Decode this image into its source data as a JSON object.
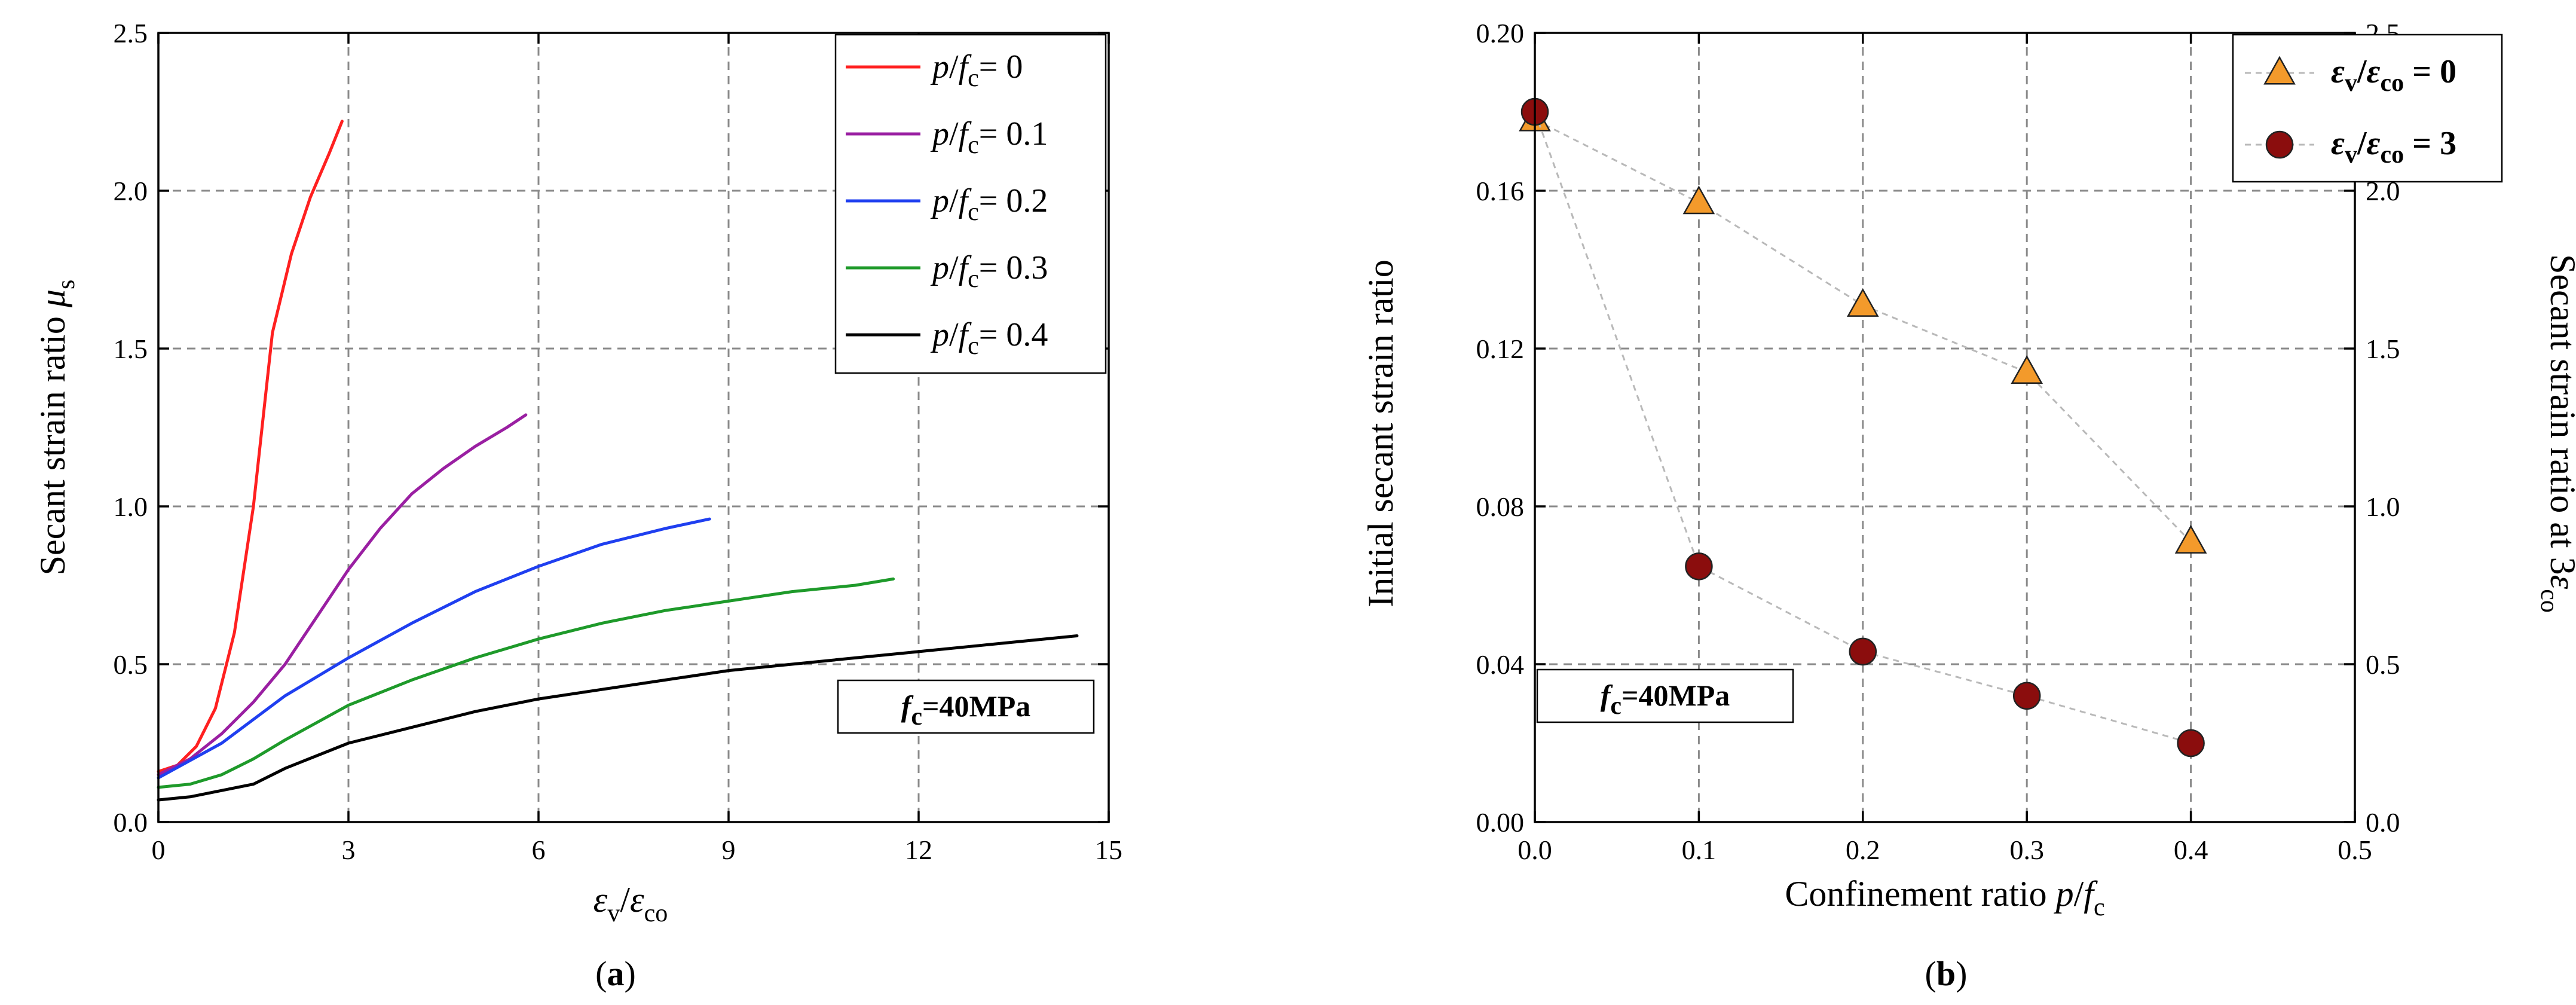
{
  "chart_data": [
    {
      "type": "line",
      "panel_label": "a",
      "xlabel": {
        "main": "ε",
        "sub": "v",
        "sep": "/",
        "main2": "ε",
        "sub2": "co"
      },
      "ylabel": {
        "text": "Secant strain ratio ",
        "sym": "μ",
        "sub": "s"
      },
      "xlim": [
        0,
        15
      ],
      "ylim": [
        0,
        2.5
      ],
      "xticks": [
        0,
        3,
        6,
        9,
        12,
        15
      ],
      "xtick_labels": [
        "0",
        "3",
        "6",
        "9",
        "12",
        "15"
      ],
      "yticks": [
        0,
        0.5,
        1.0,
        1.5,
        2.0,
        2.5
      ],
      "ytick_labels": [
        "0.0",
        "0.5",
        "1.0",
        "1.5",
        "2.0",
        "2.5"
      ],
      "grid": true,
      "legend_position": "top-right",
      "note": {
        "main": "f",
        "sub": "c",
        "rest": "=40MPa"
      },
      "series": [
        {
          "name": {
            "p": "p",
            "sep": "/",
            "f": "f",
            "sub": "c",
            "val": "= 0"
          },
          "color": "#ff2020",
          "x": [
            0,
            0.3,
            0.6,
            0.9,
            1.2,
            1.5,
            1.8,
            2.1,
            2.4,
            2.7,
            2.9
          ],
          "y": [
            0.16,
            0.18,
            0.24,
            0.36,
            0.6,
            1.0,
            1.55,
            1.8,
            1.98,
            2.12,
            2.22
          ]
        },
        {
          "name": {
            "p": "p",
            "sep": "/",
            "f": "f",
            "sub": "c",
            "val": "= 0.1"
          },
          "color": "#9a1fa2",
          "x": [
            0,
            0.5,
            1.0,
            1.5,
            2.0,
            2.5,
            3.0,
            3.5,
            4.0,
            4.5,
            5.0,
            5.5,
            5.8
          ],
          "y": [
            0.15,
            0.2,
            0.28,
            0.38,
            0.5,
            0.65,
            0.8,
            0.93,
            1.04,
            1.12,
            1.19,
            1.25,
            1.29
          ]
        },
        {
          "name": {
            "p": "p",
            "sep": "/",
            "f": "f",
            "sub": "c",
            "val": "= 0.2"
          },
          "color": "#1f3ff0",
          "x": [
            0,
            1,
            2,
            3,
            4,
            5,
            6,
            7,
            8,
            8.7
          ],
          "y": [
            0.14,
            0.25,
            0.4,
            0.52,
            0.63,
            0.73,
            0.81,
            0.88,
            0.93,
            0.96
          ]
        },
        {
          "name": {
            "p": "p",
            "sep": "/",
            "f": "f",
            "sub": "c",
            "val": "= 0.3"
          },
          "color": "#1e9a2a",
          "x": [
            0,
            0.5,
            1,
            1.5,
            2,
            3,
            4,
            5,
            6,
            7,
            8,
            9,
            10,
            11,
            11.6
          ],
          "y": [
            0.11,
            0.12,
            0.15,
            0.2,
            0.26,
            0.37,
            0.45,
            0.52,
            0.58,
            0.63,
            0.67,
            0.7,
            0.73,
            0.75,
            0.77
          ]
        },
        {
          "name": {
            "p": "p",
            "sep": "/",
            "f": "f",
            "sub": "c",
            "val": "= 0.4"
          },
          "color": "#000000",
          "x": [
            0,
            0.5,
            1,
            1.5,
            2,
            3,
            4,
            5,
            6,
            7,
            8,
            9,
            10,
            11,
            12,
            13,
            14,
            14.5
          ],
          "y": [
            0.07,
            0.08,
            0.1,
            0.12,
            0.17,
            0.25,
            0.3,
            0.35,
            0.39,
            0.42,
            0.45,
            0.48,
            0.5,
            0.52,
            0.54,
            0.56,
            0.58,
            0.59
          ]
        }
      ]
    },
    {
      "type": "scatter",
      "panel_label": "b",
      "xlabel": {
        "text": "Confinement ratio ",
        "p": "p",
        "sep": "/",
        "f": "f",
        "sub": "c"
      },
      "ylabel": "Initial secant strain ratio",
      "y2label": {
        "text": "Secant strain ratio at 3",
        "sym": "ε",
        "sub": "co"
      },
      "xlim": [
        0,
        0.5
      ],
      "ylim": [
        0,
        0.2
      ],
      "y2lim": [
        0,
        2.5
      ],
      "xticks": [
        0,
        0.1,
        0.2,
        0.3,
        0.4,
        0.5
      ],
      "xtick_labels": [
        "0.0",
        "0.1",
        "0.2",
        "0.3",
        "0.4",
        "0.5"
      ],
      "yticks": [
        0,
        0.04,
        0.08,
        0.12,
        0.16,
        0.2
      ],
      "ytick_labels": [
        "0.00",
        "0.04",
        "0.08",
        "0.12",
        "0.16",
        "0.20"
      ],
      "y2ticks": [
        0,
        0.5,
        1.0,
        1.5,
        2.0,
        2.5
      ],
      "y2tick_labels": [
        "0.0",
        "0.5",
        "1.0",
        "1.5",
        "2.0",
        "2.5"
      ],
      "grid": true,
      "legend_position": "top-right",
      "note": {
        "main": "f",
        "sub": "c",
        "rest": "=40MPa"
      },
      "series": [
        {
          "name": {
            "a": "ε",
            "asub": "v",
            "sep": "/",
            "b": "ε",
            "bsub": "co",
            "val": " = 0"
          },
          "marker": "triangle",
          "color": "#f39a2b",
          "axis": "left",
          "x": [
            0,
            0.1,
            0.2,
            0.3,
            0.4
          ],
          "y": [
            0.178,
            0.157,
            0.131,
            0.114,
            0.071
          ]
        },
        {
          "name": {
            "a": "ε",
            "asub": "v",
            "sep": "/",
            "b": "ε",
            "bsub": "co",
            "val": " = 3"
          },
          "marker": "circle",
          "color": "#8b0d0d",
          "axis": "right",
          "x": [
            0,
            0.1,
            0.2,
            0.3,
            0.4
          ],
          "y": [
            2.25,
            0.81,
            0.54,
            0.4,
            0.25
          ]
        }
      ]
    }
  ]
}
